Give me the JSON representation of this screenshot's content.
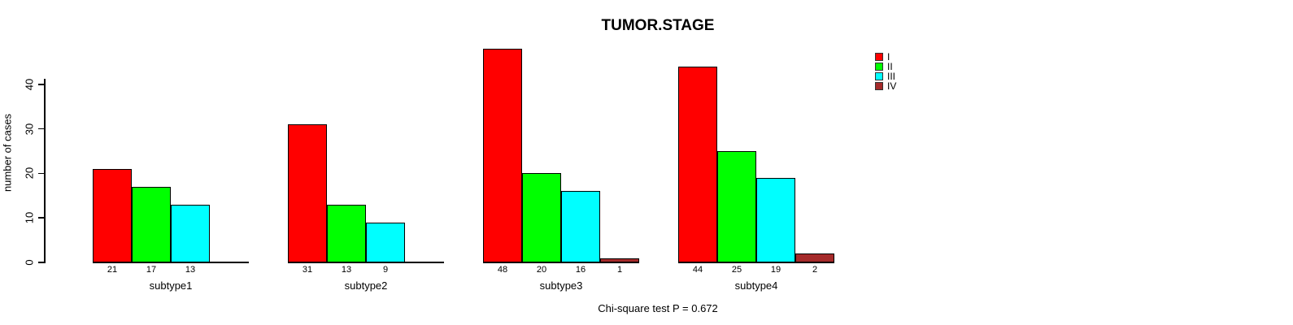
{
  "chart_data": {
    "type": "bar",
    "title": "TUMOR.STAGE",
    "xlabel": "",
    "ylabel": "number of cases",
    "categories": [
      "subtype1",
      "subtype2",
      "subtype3",
      "subtype4"
    ],
    "series": [
      {
        "name": "I",
        "color": "#ff0000",
        "values": [
          21,
          31,
          48,
          44
        ]
      },
      {
        "name": "II",
        "color": "#00ff00",
        "values": [
          17,
          13,
          20,
          25
        ]
      },
      {
        "name": "III",
        "color": "#00ffff",
        "values": [
          13,
          9,
          16,
          19
        ]
      },
      {
        "name": "IV",
        "color": "#a52a2a",
        "values": [
          0,
          0,
          1,
          2
        ]
      }
    ],
    "yticks": [
      0,
      10,
      20,
      30,
      40
    ],
    "ylim": [
      0,
      48
    ],
    "grid": false,
    "legend_position": "right",
    "bar_value_labels_shown": true,
    "zero_value_labels_hidden": true,
    "annotation": "Chi-square test P = 0.672"
  }
}
